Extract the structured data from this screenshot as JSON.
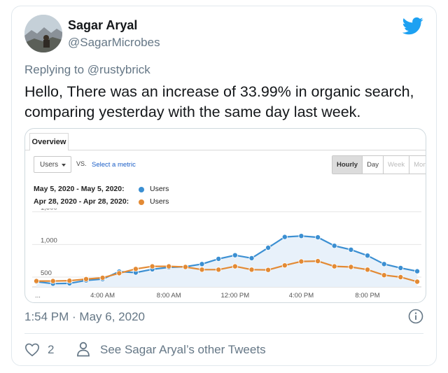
{
  "tweet": {
    "display_name": "Sagar Aryal",
    "handle": "@SagarMicrobes",
    "reply_prefix": "Replying to",
    "reply_to": "@rustybrick",
    "text": "Hello, There was an increase of 33.99% in organic search, comparing yesterday with the same day last week.",
    "timestamp": "1:54 PM · May 6, 2020",
    "like_count": "2",
    "other_tweets_link": "See Sagar Aryal’s other Tweets",
    "brand_color": "#1da1f2"
  },
  "analytics": {
    "tab_label": "Overview",
    "metric_select": "Users",
    "vs_label": "VS.",
    "select_metric_link": "Select a metric",
    "granularity": [
      "Hourly",
      "Day",
      "Week",
      "Mont"
    ],
    "legend": [
      {
        "range": "May 5, 2020 - May 5, 2020:",
        "metric": "Users",
        "color": "#3b8fd2"
      },
      {
        "range": "Apr 28, 2020 - Apr 28, 2020:",
        "metric": "Users",
        "color": "#e38a34"
      }
    ]
  },
  "chart_data": {
    "type": "line",
    "x": [
      "12 AM",
      "1 AM",
      "2 AM",
      "3 AM",
      "4 AM",
      "5 AM",
      "6 AM",
      "7 AM",
      "8 AM",
      "9 AM",
      "10 AM",
      "11 AM",
      "12 PM",
      "1 PM",
      "2 PM",
      "3 PM",
      "4 PM",
      "5 PM",
      "6 PM",
      "7 PM",
      "8 PM",
      "9 PM",
      "10 PM",
      "11 PM"
    ],
    "x_tick_labels": [
      "...",
      "4:00 AM",
      "8:00 AM",
      "12:00 PM",
      "4:00 PM",
      "8:00 PM"
    ],
    "y_tick_labels": [
      "500",
      "1,000",
      "1,500"
    ],
    "ylim": [
      350,
      1550
    ],
    "grid": true,
    "series": [
      {
        "name": "May 5, 2020 - May 5, 2020",
        "color": "#3b8fd2",
        "values": [
          430,
          400,
          405,
          450,
          470,
          585,
          570,
          620,
          650,
          660,
          700,
          780,
          835,
          790,
          950,
          1115,
          1130,
          1110,
          980,
          920,
          830,
          700,
          640,
          590
        ]
      },
      {
        "name": "Apr 28, 2020 - Apr 28, 2020",
        "color": "#e38a34",
        "values": [
          440,
          440,
          445,
          470,
          490,
          560,
          625,
          665,
          665,
          655,
          615,
          615,
          665,
          615,
          610,
          680,
          740,
          745,
          665,
          655,
          615,
          530,
          500,
          430
        ]
      }
    ]
  }
}
